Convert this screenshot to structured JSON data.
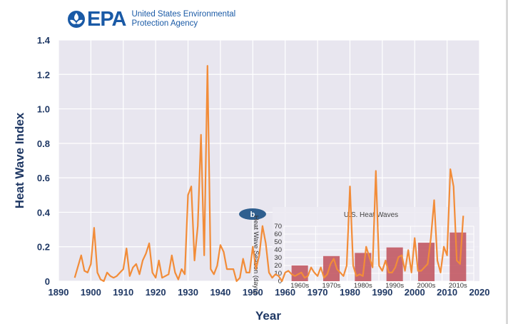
{
  "branding": {
    "logo_text": "EPA",
    "agency_name_line1": "United States Environmental",
    "agency_name_line2": "Protection Agency",
    "brand_color": "#1a5aa6",
    "icon": "epa-flower-icon"
  },
  "chart_data": [
    {
      "type": "line",
      "title": "",
      "xlabel": "Year",
      "ylabel": "Heat Wave Index",
      "xlim": [
        1890,
        2020
      ],
      "ylim": [
        0,
        1.4
      ],
      "xticks": [
        "1890",
        "1900",
        "1910",
        "1920",
        "1930",
        "1940",
        "1950",
        "1960",
        "1970",
        "1980",
        "1990",
        "2000",
        "2010",
        "2020"
      ],
      "yticks": [
        "0",
        "0.2",
        "0.4",
        "0.6",
        "0.8",
        "1.0",
        "1.2",
        "1.4"
      ],
      "grid": true,
      "line_color": "#f28c38",
      "series": [
        {
          "x": [
            1895,
            1897,
            1898,
            1899,
            1900,
            1901,
            1902,
            1903,
            1904,
            1905,
            1906,
            1907,
            1908,
            1909,
            1910,
            1911,
            1912,
            1913,
            1914,
            1915,
            1916,
            1917,
            1918,
            1919,
            1920,
            1921,
            1922,
            1923,
            1924,
            1925,
            1926,
            1927,
            1928,
            1929,
            1930,
            1931,
            1932,
            1933,
            1934,
            1935,
            1936,
            1937,
            1938,
            1939,
            1940,
            1941,
            1942,
            1943,
            1944,
            1945,
            1946,
            1947,
            1948,
            1949,
            1950,
            1951,
            1952,
            1953,
            1954,
            1955,
            1956,
            1957,
            1958,
            1959,
            1960,
            1961,
            1962,
            1963,
            1964,
            1965,
            1966,
            1967,
            1968,
            1969,
            1970,
            1971,
            1972,
            1973,
            1974,
            1975,
            1976,
            1977,
            1978,
            1979,
            1980,
            1981,
            1982,
            1983,
            1984,
            1985,
            1986,
            1987,
            1988,
            1989,
            1990,
            1991,
            1992,
            1993,
            1994,
            1995,
            1996,
            1997,
            1998,
            1999,
            2000,
            2001,
            2002,
            2003,
            2004,
            2005,
            2006,
            2007,
            2008,
            2009,
            2010,
            2011,
            2012,
            2013,
            2014,
            2015
          ],
          "y": [
            0.02,
            0.15,
            0.06,
            0.05,
            0.1,
            0.31,
            0.05,
            0.01,
            0.0,
            0.05,
            0.03,
            0.02,
            0.03,
            0.05,
            0.07,
            0.19,
            0.03,
            0.08,
            0.1,
            0.04,
            0.12,
            0.16,
            0.22,
            0.05,
            0.02,
            0.12,
            0.02,
            0.03,
            0.04,
            0.15,
            0.05,
            0.01,
            0.07,
            0.04,
            0.5,
            0.55,
            0.12,
            0.32,
            0.85,
            0.15,
            1.25,
            0.07,
            0.04,
            0.09,
            0.21,
            0.17,
            0.07,
            0.07,
            0.07,
            0.0,
            0.02,
            0.13,
            0.05,
            0.05,
            0.2,
            0.07,
            0.15,
            0.32,
            0.22,
            0.05,
            0.02,
            0.04,
            0.03,
            0.0,
            0.05,
            0.06,
            0.04,
            0.03,
            0.04,
            0.05,
            0.02,
            0.03,
            0.08,
            0.05,
            0.03,
            0.08,
            0.02,
            0.04,
            0.1,
            0.13,
            0.07,
            0.05,
            0.03,
            0.09,
            0.55,
            0.09,
            0.03,
            0.04,
            0.03,
            0.2,
            0.14,
            0.08,
            0.64,
            0.09,
            0.06,
            0.12,
            0.05,
            0.05,
            0.08,
            0.14,
            0.15,
            0.06,
            0.18,
            0.05,
            0.25,
            0.06,
            0.06,
            0.08,
            0.1,
            0.25,
            0.47,
            0.12,
            0.05,
            0.2,
            0.15,
            0.65,
            0.55,
            0.12,
            0.1,
            0.38
          ]
        }
      ]
    },
    {
      "type": "bar",
      "title": "U.S. Heat Waves",
      "badge": "b",
      "ylabel": "Heat Wave Season (days)",
      "categories": [
        "1960s",
        "1970s",
        "1980s",
        "1990s",
        "2000s",
        "2010s"
      ],
      "values": [
        20,
        32,
        36,
        43,
        49,
        62
      ],
      "ylim": [
        0,
        70
      ],
      "yticks": [
        "0",
        "10",
        "20",
        "30",
        "40",
        "50",
        "60",
        "70"
      ],
      "grid": true,
      "bar_color": "#c0505a"
    }
  ]
}
